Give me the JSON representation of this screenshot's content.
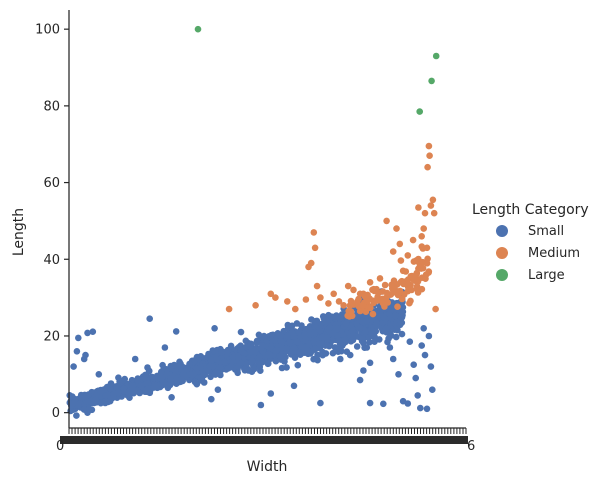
{
  "chart_data": {
    "type": "scatter",
    "title": "",
    "xlabel": "Width",
    "ylabel": "Length",
    "xlim": [
      0,
      6
    ],
    "ylim": [
      -4,
      105
    ],
    "yticks": [
      0,
      20,
      40,
      60,
      80,
      100
    ],
    "x_tick_labels": {
      "first": "0",
      "last": "6"
    },
    "grid": false,
    "legend": {
      "title": "Length Category",
      "placement": "right",
      "entries": [
        "Small",
        "Medium",
        "Large"
      ]
    },
    "series": [
      {
        "name": "Small",
        "color": "#4c72b0",
        "trend": {
          "x_start": 0.0,
          "x_end": 5.05,
          "y_start": 2.0,
          "y_end": 26.0,
          "count": 1600,
          "jitter": 2.6
        },
        "outliers": [
          {
            "x": 0.07,
            "y": 12
          },
          {
            "x": 0.12,
            "y": 16
          },
          {
            "x": 0.14,
            "y": 19.5
          },
          {
            "x": 0.25,
            "y": 15
          },
          {
            "x": 0.23,
            "y": 14
          },
          {
            "x": 0.28,
            "y": 20.8
          },
          {
            "x": 0.36,
            "y": 21.1
          },
          {
            "x": 0.45,
            "y": 10
          },
          {
            "x": 1.22,
            "y": 24.5
          },
          {
            "x": 1.0,
            "y": 14
          },
          {
            "x": 1.45,
            "y": 17
          },
          {
            "x": 1.62,
            "y": 21.2
          },
          {
            "x": 2.2,
            "y": 22
          },
          {
            "x": 2.6,
            "y": 21
          },
          {
            "x": 3.3,
            "y": 20
          },
          {
            "x": 2.25,
            "y": 6
          },
          {
            "x": 1.55,
            "y": 4
          },
          {
            "x": 2.15,
            "y": 3.5
          },
          {
            "x": 2.9,
            "y": 2
          },
          {
            "x": 3.05,
            "y": 5
          },
          {
            "x": 3.4,
            "y": 7
          },
          {
            "x": 3.8,
            "y": 2.5
          },
          {
            "x": 3.78,
            "y": 18
          },
          {
            "x": 4.1,
            "y": 14
          },
          {
            "x": 4.25,
            "y": 15
          },
          {
            "x": 4.45,
            "y": 11
          },
          {
            "x": 4.55,
            "y": 13
          },
          {
            "x": 4.4,
            "y": 8.5
          },
          {
            "x": 4.55,
            "y": 2.5
          },
          {
            "x": 4.75,
            "y": 2.3
          },
          {
            "x": 4.85,
            "y": 17
          },
          {
            "x": 4.9,
            "y": 14
          },
          {
            "x": 4.98,
            "y": 10
          },
          {
            "x": 5.05,
            "y": 3
          },
          {
            "x": 5.12,
            "y": 2.4
          },
          {
            "x": 5.15,
            "y": 18.5
          },
          {
            "x": 5.21,
            "y": 12.5
          },
          {
            "x": 5.24,
            "y": 9
          },
          {
            "x": 5.27,
            "y": 4.5
          },
          {
            "x": 5.31,
            "y": 1.2
          },
          {
            "x": 5.33,
            "y": 17.5
          },
          {
            "x": 5.36,
            "y": 22
          },
          {
            "x": 5.38,
            "y": 15
          },
          {
            "x": 5.41,
            "y": 1
          },
          {
            "x": 5.44,
            "y": 20
          },
          {
            "x": 5.47,
            "y": 12
          },
          {
            "x": 5.49,
            "y": 6
          }
        ]
      },
      {
        "name": "Medium",
        "color": "#dd8452",
        "trend": {
          "x_start": 4.2,
          "x_end": 5.45,
          "y_start": 26.5,
          "y_end": 37.0,
          "count": 120,
          "jitter": 3.0
        },
        "points": [
          {
            "x": 2.42,
            "y": 27
          },
          {
            "x": 2.82,
            "y": 28
          },
          {
            "x": 3.05,
            "y": 31
          },
          {
            "x": 3.12,
            "y": 30
          },
          {
            "x": 3.3,
            "y": 29
          },
          {
            "x": 3.42,
            "y": 27
          },
          {
            "x": 3.58,
            "y": 29.5
          },
          {
            "x": 3.62,
            "y": 38
          },
          {
            "x": 3.66,
            "y": 39
          },
          {
            "x": 3.7,
            "y": 47
          },
          {
            "x": 3.72,
            "y": 43
          },
          {
            "x": 3.75,
            "y": 33
          },
          {
            "x": 3.8,
            "y": 30
          },
          {
            "x": 3.92,
            "y": 28.5
          },
          {
            "x": 4.0,
            "y": 31
          },
          {
            "x": 4.08,
            "y": 29
          },
          {
            "x": 4.15,
            "y": 28
          },
          {
            "x": 4.22,
            "y": 33
          },
          {
            "x": 4.3,
            "y": 32
          },
          {
            "x": 4.4,
            "y": 31
          },
          {
            "x": 4.55,
            "y": 34
          },
          {
            "x": 4.7,
            "y": 35
          },
          {
            "x": 4.8,
            "y": 50
          },
          {
            "x": 4.9,
            "y": 42
          },
          {
            "x": 4.95,
            "y": 48
          },
          {
            "x": 5.0,
            "y": 44
          },
          {
            "x": 5.12,
            "y": 41
          },
          {
            "x": 5.2,
            "y": 45
          },
          {
            "x": 5.28,
            "y": 53.5
          },
          {
            "x": 5.33,
            "y": 46
          },
          {
            "x": 5.36,
            "y": 48
          },
          {
            "x": 5.38,
            "y": 52
          },
          {
            "x": 5.41,
            "y": 43
          },
          {
            "x": 5.42,
            "y": 64
          },
          {
            "x": 5.44,
            "y": 69.5
          },
          {
            "x": 5.45,
            "y": 67
          },
          {
            "x": 5.47,
            "y": 54
          },
          {
            "x": 5.5,
            "y": 55.5
          },
          {
            "x": 5.52,
            "y": 52
          },
          {
            "x": 5.54,
            "y": 27
          },
          {
            "x": 5.3,
            "y": 38
          },
          {
            "x": 5.25,
            "y": 36
          },
          {
            "x": 5.18,
            "y": 32
          },
          {
            "x": 5.05,
            "y": 37
          }
        ]
      },
      {
        "name": "Large",
        "color": "#55a868",
        "points": [
          {
            "x": 1.95,
            "y": 100
          },
          {
            "x": 5.3,
            "y": 78.5
          },
          {
            "x": 5.48,
            "y": 86.5
          },
          {
            "x": 5.55,
            "y": 93
          }
        ]
      }
    ]
  }
}
